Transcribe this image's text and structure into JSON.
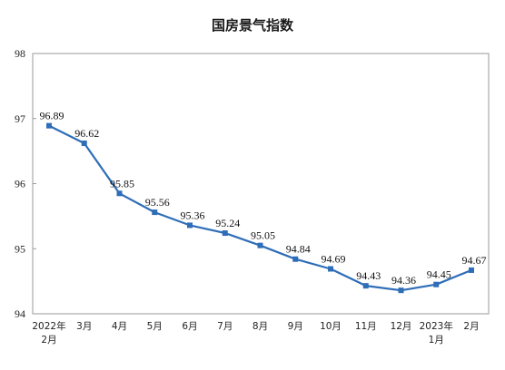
{
  "chart_data": {
    "type": "line",
    "title": "国房景气指数",
    "xlabel": "",
    "ylabel": "",
    "ylim": [
      94,
      98
    ],
    "yticks": [
      "94",
      "95",
      "96",
      "97",
      "98"
    ],
    "grid": false,
    "legend": "none",
    "colors": {
      "line": "#2e6db8",
      "frame": "#9a9a9a",
      "text": "#222222"
    },
    "categories": [
      [
        "2022年",
        "2月"
      ],
      [
        "3月"
      ],
      [
        "4月"
      ],
      [
        "5月"
      ],
      [
        "6月"
      ],
      [
        "7月"
      ],
      [
        "8月"
      ],
      [
        "9月"
      ],
      [
        "10月"
      ],
      [
        "11月"
      ],
      [
        "12月"
      ],
      [
        "2023年",
        "1月"
      ],
      [
        "2月"
      ]
    ],
    "series": [
      {
        "values": [
          96.89,
          96.62,
          95.85,
          95.56,
          95.36,
          95.24,
          95.05,
          94.84,
          94.69,
          94.43,
          94.36,
          94.45,
          94.67
        ],
        "labels": [
          "96.89",
          "96.62",
          "95.85",
          "95.56",
          "95.36",
          "95.24",
          "95.05",
          "94.84",
          "94.69",
          "94.43",
          "94.36",
          "94.45",
          "94.67"
        ]
      }
    ]
  }
}
